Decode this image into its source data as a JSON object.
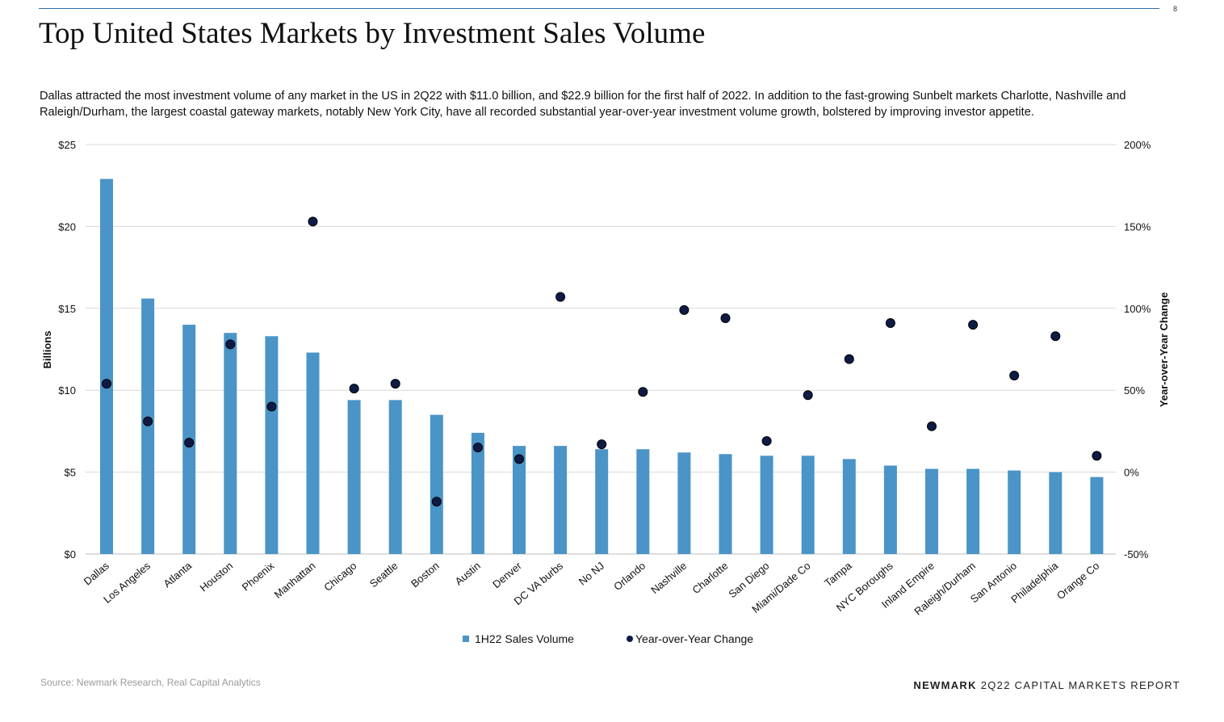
{
  "page": {
    "title": "Top United States Markets by Investment Sales Volume",
    "page_number": "8",
    "description": "Dallas attracted the most investment volume of any market in the US in 2Q22 with $11.0 billion, and $22.9 billion for the first half of 2022. In addition to the fast-growing Sunbelt markets Charlotte, Nashville and Raleigh/Durham, the largest coastal gateway markets, notably New York City, have all recorded substantial year-over-year investment volume growth, bolstered by improving investor appetite.",
    "source": "Source: Newmark Research, Real Capital Analytics",
    "footer_brand": "NEWMARK",
    "footer_text": " 2Q22 CAPITAL MARKETS REPORT"
  },
  "colors": {
    "bar": "#4a94c8",
    "dot": "#0d1b46",
    "grid": "#d9d9d9",
    "rule": "#2b6cb0"
  },
  "chart_data": {
    "type": "bar",
    "categories": [
      "Dallas",
      "Los Angeles",
      "Atlanta",
      "Houston",
      "Phoenix",
      "Manhattan",
      "Chicago",
      "Seattle",
      "Boston",
      "Austin",
      "Denver",
      "DC VA burbs",
      "No NJ",
      "Orlando",
      "Nashville",
      "Charlotte",
      "San Diego",
      "Miami/Dade Co",
      "Tampa",
      "NYC Boroughs",
      "Inland Empire",
      "Raleigh/Durham",
      "San Antonio",
      "Philadelphia",
      "Orange Co"
    ],
    "series": [
      {
        "name": "1H22 Sales Volume",
        "type": "bar",
        "axis": "left",
        "values": [
          22.9,
          15.6,
          14.0,
          13.5,
          13.3,
          12.3,
          9.4,
          9.4,
          8.5,
          7.4,
          6.6,
          6.6,
          6.4,
          6.4,
          6.2,
          6.1,
          6.0,
          6.0,
          5.8,
          5.4,
          5.2,
          5.2,
          5.1,
          5.0,
          4.7
        ]
      },
      {
        "name": "Year-over-Year Change",
        "type": "scatter",
        "axis": "right",
        "values": [
          54,
          31,
          18,
          78,
          40,
          153,
          51,
          54,
          -18,
          15,
          8,
          107,
          17,
          49,
          99,
          94,
          19,
          47,
          69,
          91,
          28,
          90,
          59,
          83,
          10
        ]
      }
    ],
    "left_axis": {
      "label": "Billions",
      "min": 0,
      "max": 25,
      "ticks": [
        "$0",
        "$5",
        "$10",
        "$15",
        "$20",
        "$25"
      ]
    },
    "right_axis": {
      "label": "Year-over-Year Change",
      "min": -50,
      "max": 200,
      "ticks": [
        "-50%",
        "0%",
        "50%",
        "100%",
        "150%",
        "200%"
      ]
    },
    "grid": true,
    "legend": {
      "position": "bottom",
      "items": [
        "1H22 Sales Volume",
        "Year-over-Year Change"
      ]
    }
  }
}
